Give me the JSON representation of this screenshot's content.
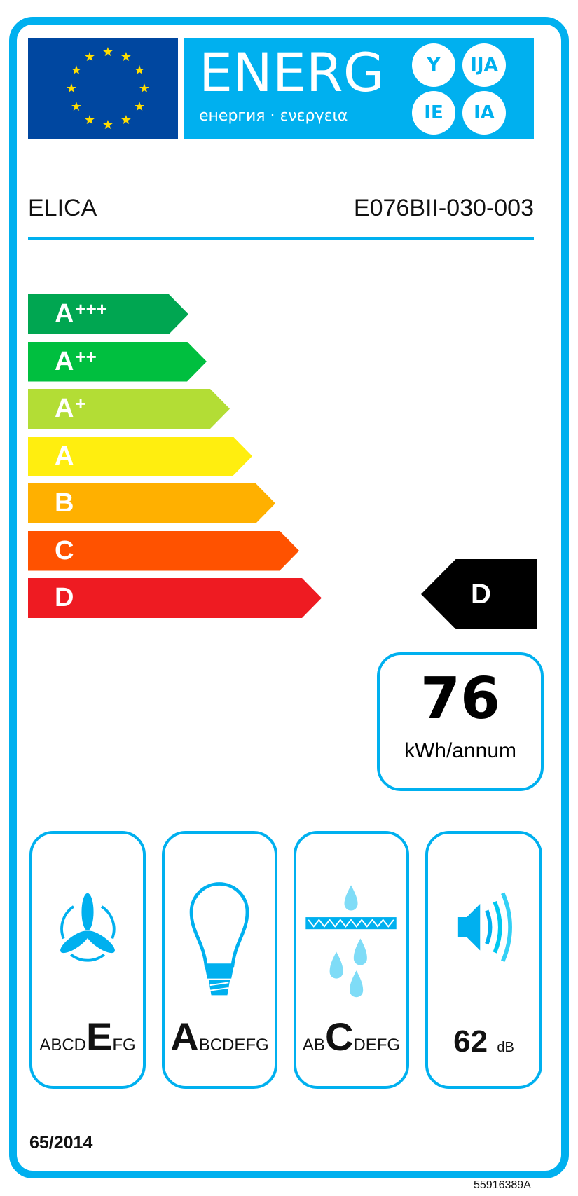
{
  "header": {
    "title": "ENERG",
    "subtitle": "енергия · ενεργεια",
    "suffixes": [
      "Y",
      "IJA",
      "IE",
      "IA"
    ],
    "flag_icon": "eu-flag-icon"
  },
  "supplier": "ELICA",
  "model": "E076BII-030-003",
  "scale": [
    {
      "label": "A",
      "sup": "+++",
      "color": "#00a651"
    },
    {
      "label": "A",
      "sup": "++",
      "color": "#00bf3f"
    },
    {
      "label": "A",
      "sup": "+",
      "color": "#b3dd35"
    },
    {
      "label": "A",
      "sup": "",
      "color": "#ffee0f"
    },
    {
      "label": "B",
      "sup": "",
      "color": "#ffb000"
    },
    {
      "label": "C",
      "sup": "",
      "color": "#ff5200"
    },
    {
      "label": "D",
      "sup": "",
      "color": "#ee1b22"
    }
  ],
  "rating": "D",
  "consumption": {
    "value": "76",
    "unit": "kWh/annum"
  },
  "pictograms": [
    {
      "icon": "fan-icon",
      "before": "ABCD",
      "class": "E",
      "after": "FG"
    },
    {
      "icon": "light-bulb-icon",
      "before": "",
      "class": "A",
      "after": "BCDEFG"
    },
    {
      "icon": "grease-filter-icon",
      "before": "AB",
      "class": "C",
      "after": "DEFG"
    },
    {
      "icon": "speaker-noise-icon",
      "value": "62",
      "unit": "dB"
    }
  ],
  "regulation": "65/2014",
  "label_code": "55916389A",
  "colors": {
    "accent": "#00b0ef",
    "eu_blue": "#0047a0",
    "star": "#ffdd00"
  }
}
